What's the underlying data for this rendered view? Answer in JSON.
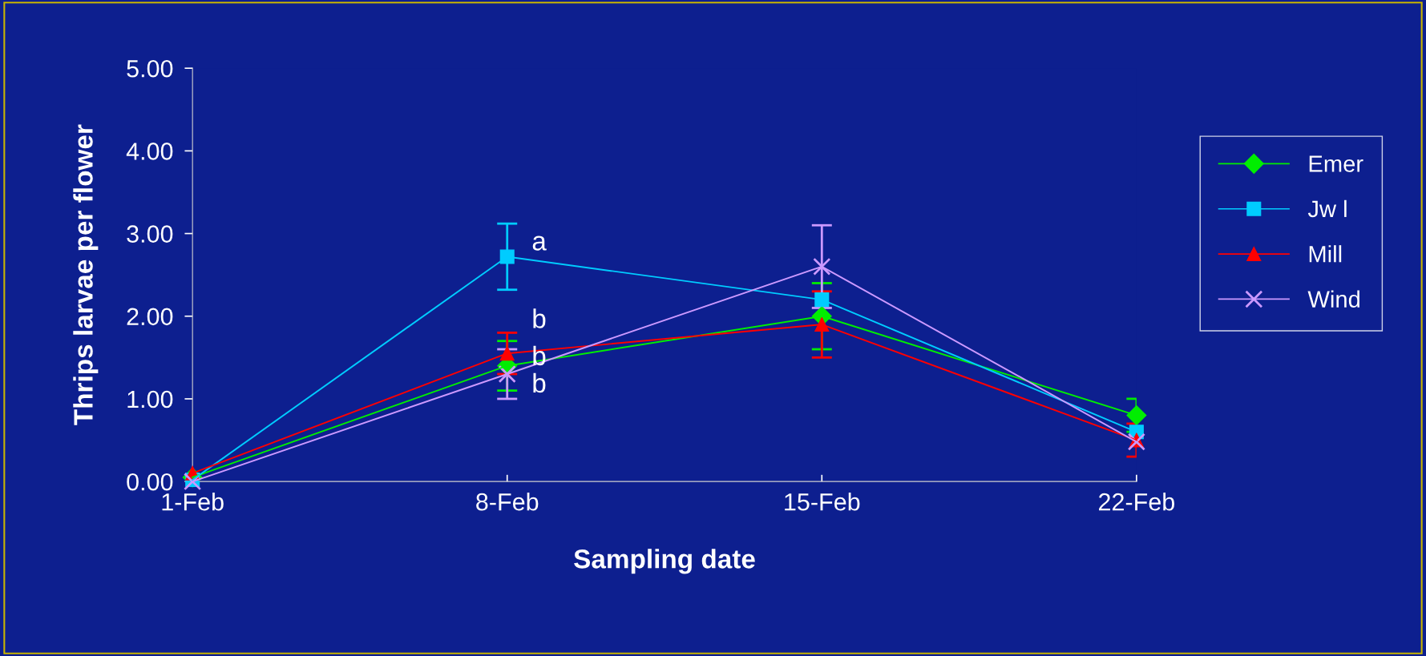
{
  "chart_data": {
    "type": "line",
    "xlabel": "Sampling date",
    "ylabel": "Thrips larvae per flower",
    "categories": [
      "1-Feb",
      "8-Feb",
      "15-Feb",
      "22-Feb"
    ],
    "ylim": [
      0,
      5
    ],
    "yticks": [
      {
        "value": 0,
        "label": "0.00"
      },
      {
        "value": 1,
        "label": "1.00"
      },
      {
        "value": 2,
        "label": "2.00"
      },
      {
        "value": 3,
        "label": "3.00"
      },
      {
        "value": 4,
        "label": "4.00"
      },
      {
        "value": 5,
        "label": "5.00"
      }
    ],
    "grid": false,
    "legend": "right",
    "series": [
      {
        "name": "Emer",
        "color": "#00ee00",
        "marker": "diamond",
        "values": [
          0.05,
          1.4,
          2.0,
          0.8
        ],
        "errors": [
          null,
          0.3,
          0.4,
          0.2
        ]
      },
      {
        "name": "Jw l",
        "color": "#00ccff",
        "marker": "square",
        "values": [
          0.02,
          2.72,
          2.2,
          0.6
        ],
        "errors": [
          null,
          0.4,
          null,
          null
        ]
      },
      {
        "name": "Mill",
        "color": "#ff0000",
        "marker": "triangle",
        "values": [
          0.1,
          1.55,
          1.9,
          0.5
        ],
        "errors": [
          null,
          0.25,
          0.4,
          0.2
        ]
      },
      {
        "name": "Wind",
        "color": "#cc99ff",
        "marker": "cross",
        "values": [
          0.0,
          1.3,
          2.6,
          0.48
        ],
        "errors": [
          null,
          0.3,
          0.5,
          null
        ]
      }
    ],
    "annotations": [
      {
        "text": "a",
        "x": "8-Feb",
        "y": 2.72
      },
      {
        "text": "b",
        "x": "8-Feb",
        "y": 1.78
      },
      {
        "text": "b",
        "x": "8-Feb",
        "y": 1.33
      },
      {
        "text": "b",
        "x": "8-Feb",
        "y": 1.0
      }
    ]
  }
}
